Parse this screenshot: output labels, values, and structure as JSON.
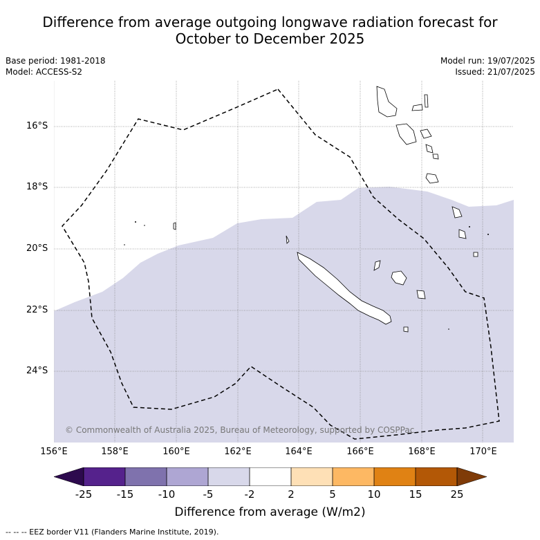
{
  "title_line1": "Difference from average outgoing longwave radiation forecast for",
  "title_line2": "October to December 2025",
  "base_period": "Base period: 1981-2018",
  "model": "Model: ACCESS-S2",
  "model_run": "Model run: 19/07/2025",
  "issued": "Issued: 21/07/2025",
  "lat_labels": [
    "16°S",
    "18°S",
    "20°S",
    "22°S",
    "24°S"
  ],
  "lon_labels": [
    "156°E",
    "158°E",
    "160°E",
    "162°E",
    "164°E",
    "166°E",
    "168°E",
    "170°E"
  ],
  "copyright": "© Commonwealth of Australia 2025, Bureau of Meteorology, supported by COSPPac",
  "colorbar": {
    "ticks": [
      "-25",
      "-15",
      "-10",
      "-5",
      "-2",
      "2",
      "5",
      "10",
      "15",
      "25"
    ],
    "colors": {
      "below": "#2d0a4e",
      "b1": "#55228c",
      "b2": "#7f72ad",
      "b3": "#aea6d3",
      "b4": "#d8d8ea",
      "b5": "#ffffff",
      "b6": "#fee0b6",
      "b7": "#fdb863",
      "b8": "#e08214",
      "b9": "#b35806",
      "above": "#7f3b08"
    }
  },
  "colorbar_label": "Difference from average (W/m2)",
  "legend_eez": "-- -- -- EEZ border V11 (Flanders Marine Institute, 2019).",
  "map": {
    "anomaly_fill": "#d8d8ea",
    "lon_range": [
      156,
      171
    ],
    "lat_range": [
      -14.8,
      -26.6
    ]
  }
}
